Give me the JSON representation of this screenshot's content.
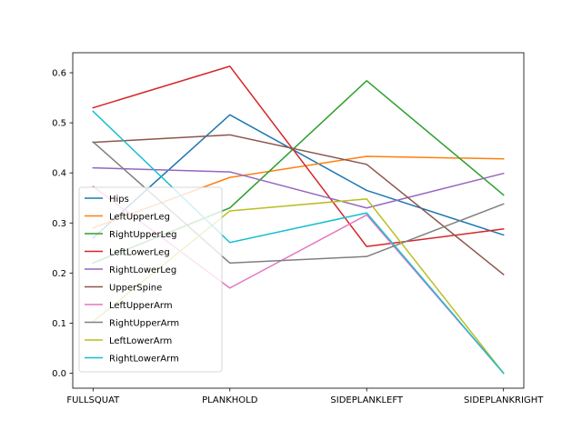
{
  "chart_data": {
    "type": "line",
    "title": "",
    "xlabel": "",
    "ylabel": "",
    "categories": [
      "FULLSQUAT",
      "PLANKHOLD",
      "SIDEPLANKLEFT",
      "SIDEPLANKRIGHT"
    ],
    "ylim": [
      -0.03,
      0.64
    ],
    "yticks": [
      "0.0",
      "0.1",
      "0.2",
      "0.3",
      "0.4",
      "0.5",
      "0.6"
    ],
    "grid": false,
    "legend_position": "lower-left",
    "series": [
      {
        "name": "Hips",
        "color": "#1f77b4",
        "values": [
          0.27,
          0.516,
          0.365,
          0.276
        ]
      },
      {
        "name": "LeftUpperLeg",
        "color": "#ff7f0e",
        "values": [
          0.29,
          0.391,
          0.433,
          0.428
        ]
      },
      {
        "name": "RightUpperLeg",
        "color": "#2ca02c",
        "values": [
          0.22,
          0.33,
          0.584,
          0.356
        ]
      },
      {
        "name": "LeftLowerLeg",
        "color": "#d62728",
        "values": [
          0.53,
          0.613,
          0.253,
          0.288
        ]
      },
      {
        "name": "RightLowerLeg",
        "color": "#9467bd",
        "values": [
          0.41,
          0.402,
          0.33,
          0.399
        ]
      },
      {
        "name": "UpperSpine",
        "color": "#8c564b",
        "values": [
          0.461,
          0.476,
          0.417,
          0.197
        ]
      },
      {
        "name": "LeftUpperArm",
        "color": "#e377c2",
        "values": [
          0.373,
          0.17,
          0.316,
          0.0
        ]
      },
      {
        "name": "RightUpperArm",
        "color": "#7f7f7f",
        "values": [
          0.462,
          0.22,
          0.233,
          0.338
        ]
      },
      {
        "name": "LeftLowerArm",
        "color": "#bcbd22",
        "values": [
          0.103,
          0.324,
          0.348,
          0.0
        ]
      },
      {
        "name": "RightLowerArm",
        "color": "#17becf",
        "values": [
          0.523,
          0.261,
          0.32,
          0.0
        ]
      }
    ]
  }
}
